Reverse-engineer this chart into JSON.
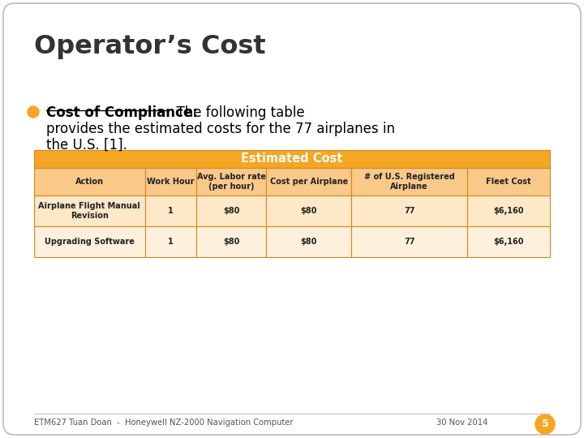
{
  "title": "Operator’s Cost",
  "bullet_bold_text": "Cost of Compliance:",
  "bullet_normal_text1": "  The following table",
  "bullet_normal_text2": "provides the estimated costs for the 77 airplanes in",
  "bullet_normal_text3": "the U.S. [1].",
  "table_header": "Estimated Cost",
  "col_headers": [
    "Action",
    "Work Hour",
    "Avg. Labor rate\n(per hour)",
    "Cost per Airplane",
    "# of U.S. Registered\nAirplane",
    "Fleet Cost"
  ],
  "rows": [
    [
      "Airplane Flight Manual\nRevision",
      "1",
      "$80",
      "$80",
      "77",
      "$6,160"
    ],
    [
      "Upgrading Software",
      "1",
      "$80",
      "$80",
      "77",
      "$6,160"
    ]
  ],
  "header_bg": "#F5A623",
  "col_header_bg": "#F9C98A",
  "row_bg_even": "#FDE8C8",
  "row_bg_odd": "#FDF0DC",
  "border_color": "#D4891A",
  "footer_text": "ETM627 Tuan Doan  -  Honeywell NZ-2000 Navigation Computer",
  "footer_date": "30 Nov 2014",
  "page_num": "5",
  "page_circle_color": "#F5A623",
  "bg_color": "#FFFFFF"
}
